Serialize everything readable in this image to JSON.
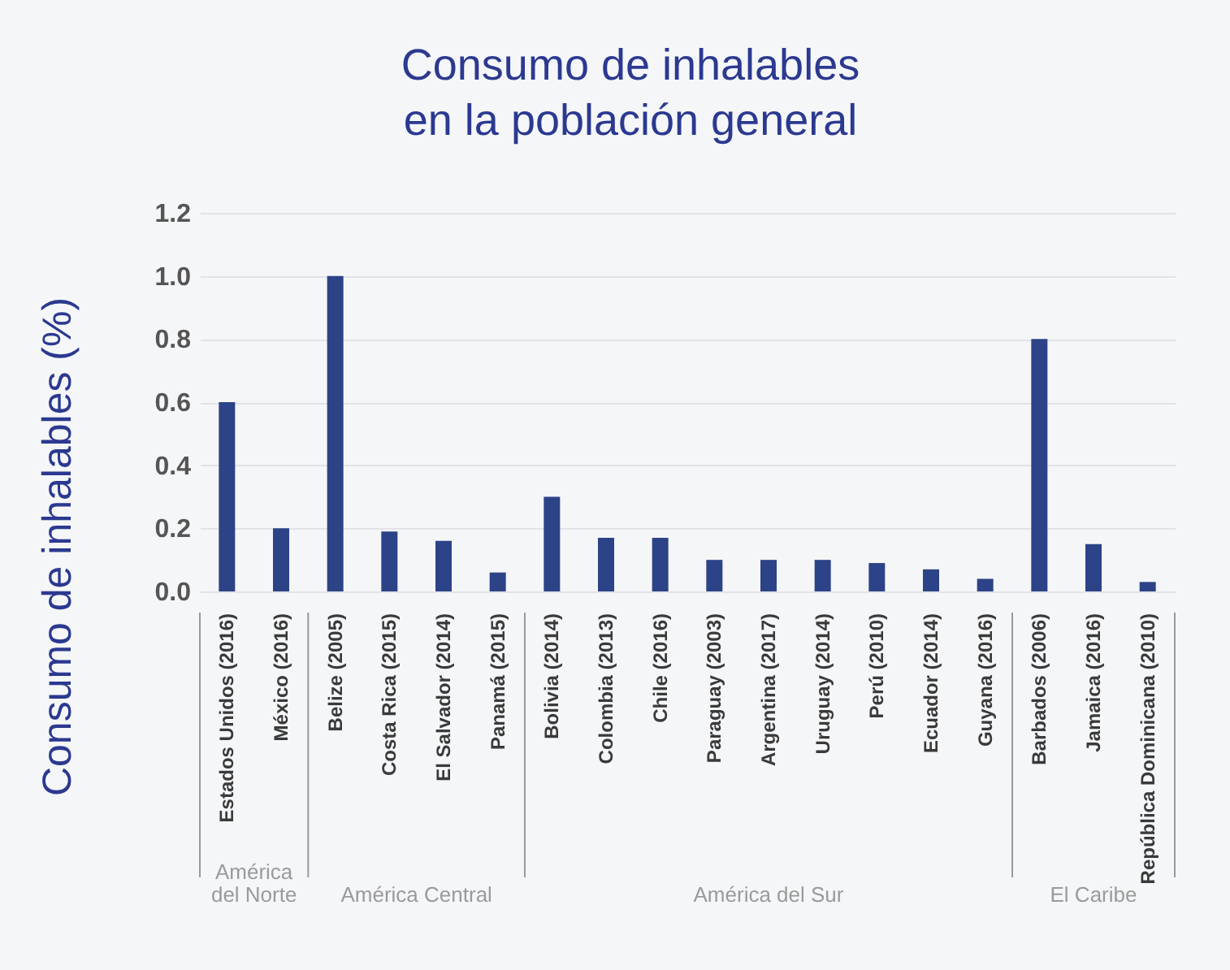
{
  "chart_data": {
    "type": "bar",
    "title": "Consumo de inhalables en la población general",
    "ylabel": "Consumo de inhalables (%)",
    "categories": [
      "Estados Unidos (2016)",
      "México (2016)",
      "Belize (2005)",
      "Costa Rica (2015)",
      "El Salvador (2014)",
      "Panamá (2015)",
      "Bolivia (2014)",
      "Colombia (2013)",
      "Chile (2016)",
      "Paraguay (2003)",
      "Argentina (2017)",
      "Uruguay (2014)",
      "Perú (2010)",
      "Ecuador (2014)",
      "Guyana (2016)",
      "Barbados (2006)",
      "Jamaica (2016)",
      "República Dominicana (2010)"
    ],
    "values": [
      0.6,
      0.2,
      1.0,
      0.19,
      0.16,
      0.06,
      0.3,
      0.17,
      0.17,
      0.1,
      0.1,
      0.1,
      0.09,
      0.07,
      0.04,
      0.8,
      0.15,
      0.03
    ],
    "color": "#2d4387",
    "ylim": [
      0,
      1.2
    ],
    "yticks": [
      {
        "value": 0,
        "label": "0.0"
      },
      0.2,
      0.4,
      0.6,
      0.8,
      {
        "value": 1,
        "label": "1.0"
      },
      1.2
    ],
    "grid": "y",
    "annotations": [
      "América del Norte",
      "América Central",
      "América del Sur",
      "El Caribe"
    ]
  }
}
